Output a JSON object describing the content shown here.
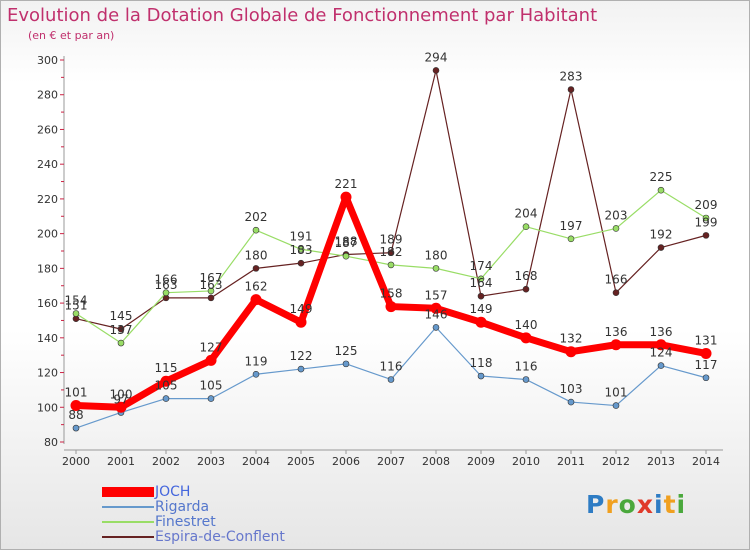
{
  "title": "Evolution de la Dotation Globale de Fonctionnement par Habitant",
  "subtitle": "(en € et par an)",
  "logo": {
    "letters": [
      "P",
      "r",
      "o",
      "x",
      "i",
      "t",
      "i"
    ],
    "colors": [
      "#2e7cc4",
      "#f0a020",
      "#4aa83c",
      "#e03a2a",
      "#2e7cc4",
      "#f0a020",
      "#4aa83c"
    ]
  },
  "chart_data": {
    "type": "line",
    "x": [
      "2000",
      "2001",
      "2002",
      "2003",
      "2004",
      "2005",
      "2006",
      "2007",
      "2008",
      "2009",
      "2010",
      "2011",
      "2012",
      "2013",
      "2014"
    ],
    "ylim": [
      80,
      300
    ],
    "yticks": [
      80,
      100,
      120,
      140,
      160,
      180,
      200,
      220,
      240,
      260,
      280,
      300
    ],
    "grid": false,
    "legend_position": "bottom-left",
    "series": [
      {
        "name": "JOCH",
        "color": "#ff0000",
        "values": [
          101,
          100,
          115,
          127,
          162,
          149,
          221,
          158,
          157,
          149,
          140,
          132,
          136,
          136,
          131
        ]
      },
      {
        "name": "Rigarda",
        "color": "#6699cc",
        "values": [
          88,
          97,
          105,
          105,
          119,
          122,
          125,
          116,
          146,
          118,
          116,
          103,
          101,
          124,
          117
        ]
      },
      {
        "name": "Finestret",
        "color": "#99dd66",
        "values": [
          154,
          137,
          166,
          167,
          202,
          191,
          187,
          182,
          180,
          174,
          204,
          197,
          203,
          225,
          209
        ]
      },
      {
        "name": "Espira-de-Conflent",
        "color": "#662222",
        "values": [
          151,
          145,
          163,
          163,
          180,
          183,
          188,
          189,
          294,
          164,
          168,
          283,
          166,
          192,
          199
        ]
      }
    ]
  }
}
